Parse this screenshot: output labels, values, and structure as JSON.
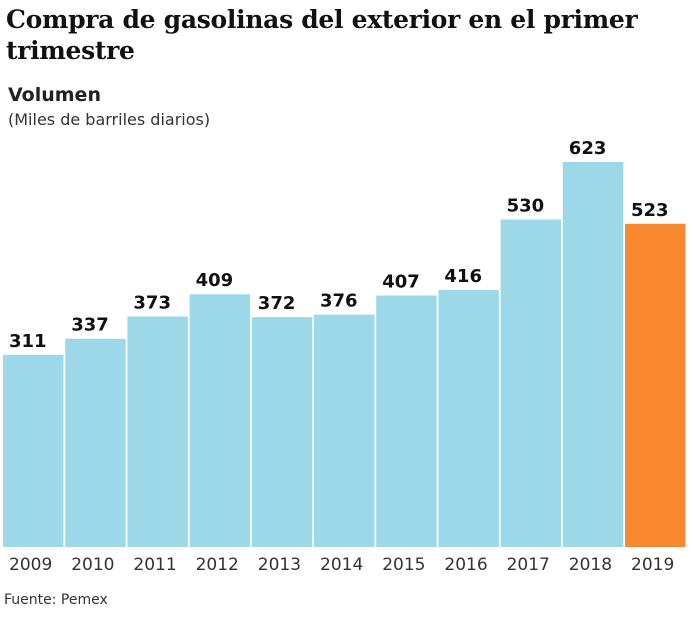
{
  "chart_data": {
    "type": "bar",
    "title": "Compra de gasolinas del exterior en el primer trimestre",
    "subtitle": "Volumen",
    "ylabel": "(Miles de barriles diarios)",
    "categories": [
      "2009",
      "2010",
      "2011",
      "2012",
      "2013",
      "2014",
      "2015",
      "2016",
      "2017",
      "2018",
      "2019"
    ],
    "values": [
      311,
      337,
      373,
      409,
      372,
      376,
      407,
      416,
      530,
      623,
      523
    ],
    "ylim": [
      0,
      623
    ],
    "grid": false,
    "colors": {
      "default": "#9dd8e9",
      "highlight": "#f7882f",
      "highlight_category": "2019"
    },
    "source": "Fuente: Pemex"
  }
}
